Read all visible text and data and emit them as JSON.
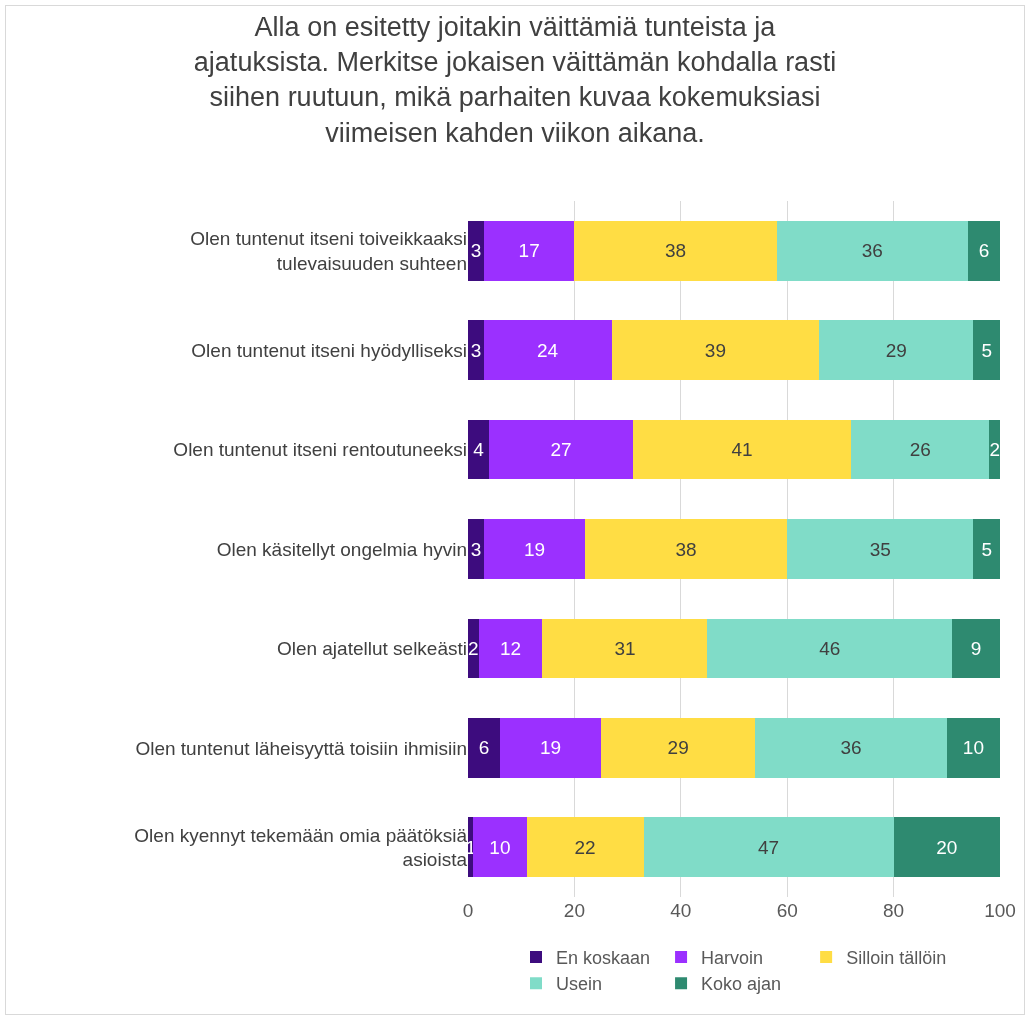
{
  "chart_data": {
    "type": "bar",
    "orientation": "horizontal",
    "stacked": true,
    "title": "Alla on esitetty joitakin väittämiä tunteista ja ajatuksista. Merkitse jokaisen väittämän kohdalla rasti siihen ruutuun, mikä parhaiten kuvaa kokemuksiasi viimeisen kahden viikon aikana.",
    "categories": [
      "Olen tuntenut itseni toiveikkaaksi tulevaisuuden suhteen",
      "Olen tuntenut itseni hyödylliseksi",
      "Olen tuntenut itseni rentoutuneeksi",
      "Olen käsitellyt ongelmia hyvin",
      "Olen ajatellut selkeästi",
      "Olen tuntenut läheisyyttä toisiin ihmisiin",
      "Olen kyennyt tekemään omia päätöksiä asioista"
    ],
    "series": [
      {
        "name": "En koskaan",
        "color": "#3d0c7e",
        "values": [
          3,
          3,
          4,
          3,
          2,
          6,
          1
        ]
      },
      {
        "name": "Harvoin",
        "color": "#9b30ff",
        "values": [
          17,
          24,
          27,
          19,
          12,
          19,
          10
        ]
      },
      {
        "name": "Silloin tällöin",
        "color": "#ffdd44",
        "values": [
          38,
          39,
          41,
          38,
          31,
          29,
          22
        ]
      },
      {
        "name": "Usein",
        "color": "#80dcc8",
        "values": [
          36,
          29,
          26,
          35,
          46,
          36,
          47
        ]
      },
      {
        "name": "Koko ajan",
        "color": "#2e8a70",
        "values": [
          6,
          5,
          2,
          5,
          9,
          10,
          20
        ]
      }
    ],
    "xlim": [
      0,
      100
    ],
    "xticks": [
      0,
      20,
      40,
      60,
      80,
      100
    ],
    "grid": "x",
    "legend": "bottom",
    "data_labels": true
  }
}
